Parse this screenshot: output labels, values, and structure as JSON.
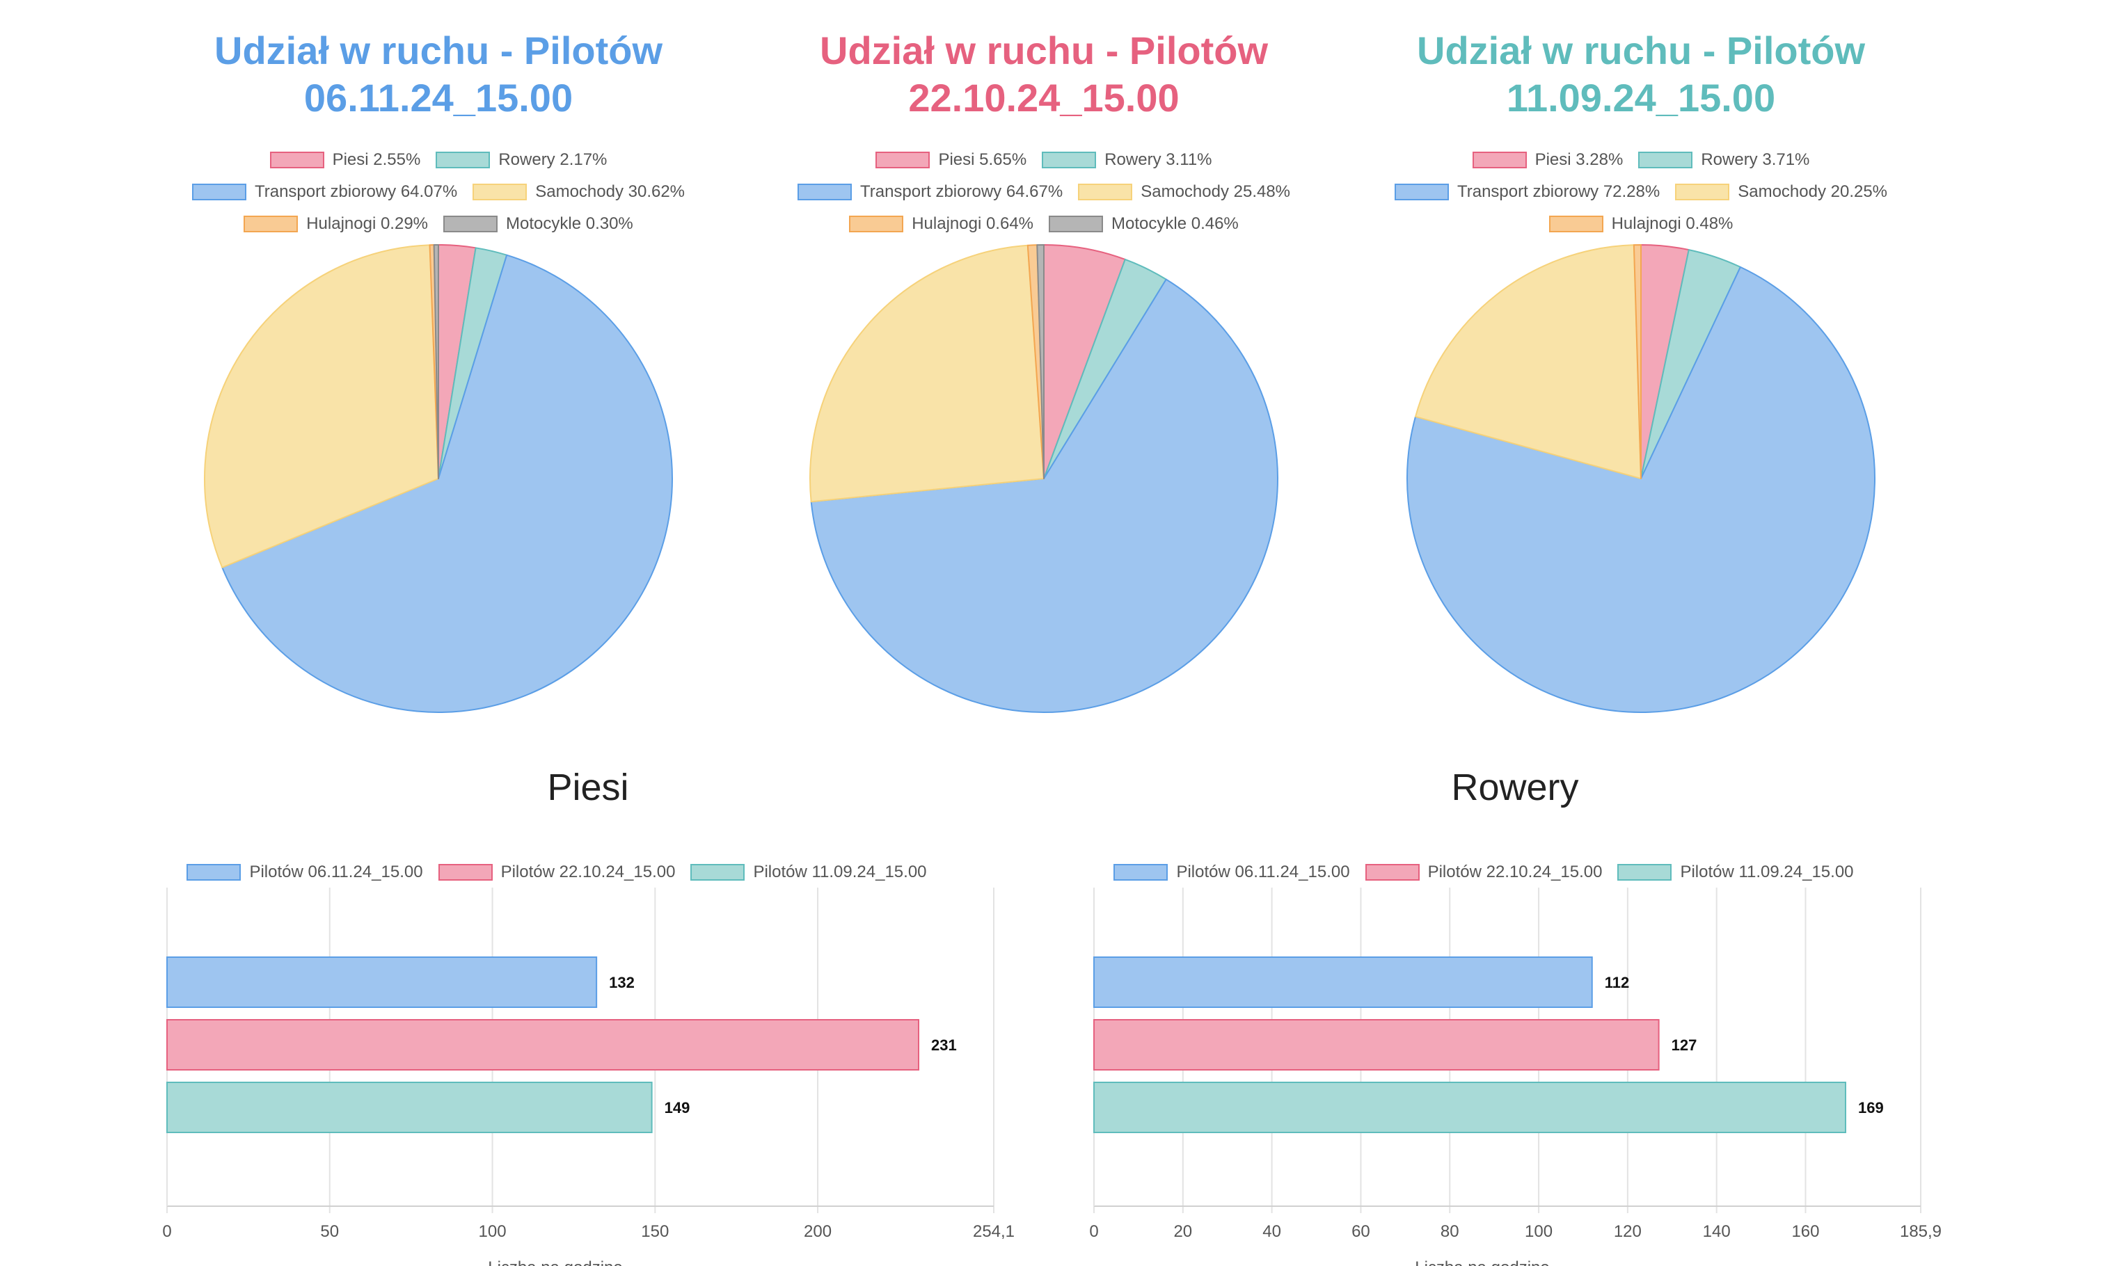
{
  "colors": {
    "blue": "#5b9ee6",
    "blue_fill": "#9ec5f0",
    "pink": "#e6617f",
    "pink_fill": "#f3a7b8",
    "teal": "#5fbcbc",
    "teal_fill": "#a8dad7",
    "yellow": "#f6d27a",
    "yellow_fill": "#f9e3a8",
    "orange": "#f3a651",
    "orange_fill": "#f9cb94",
    "gray": "#8a8a8a",
    "gray_fill": "#b5b5b5"
  },
  "chart_data": [
    {
      "type": "pie",
      "title": [
        "Udział w ruchu - Pilotów",
        "06.11.24_15.00"
      ],
      "title_color": "#5b9ee6",
      "labels": [
        "Piesi",
        "Rowery",
        "Transport zbiorowy",
        "Samochody",
        "Hulajnogi",
        "Motocykle"
      ],
      "values": [
        2.55,
        2.17,
        64.07,
        30.62,
        0.29,
        0.3
      ],
      "legend_text": [
        "Piesi 2.55%",
        "Rowery 2.17%",
        "Transport zbiorowy 64.07%",
        "Samochody 30.62%",
        "Hulajnogi 0.29%",
        "Motocykle 0.30%"
      ],
      "legend_rows": [
        [
          0,
          1
        ],
        [
          2,
          3
        ],
        [
          4,
          5
        ]
      ]
    },
    {
      "type": "pie",
      "title": [
        "Udział w ruchu - Pilotów",
        "22.10.24_15.00"
      ],
      "title_color": "#e6617f",
      "labels": [
        "Piesi",
        "Rowery",
        "Transport zbiorowy",
        "Samochody",
        "Hulajnogi",
        "Motocykle"
      ],
      "values": [
        5.65,
        3.11,
        64.67,
        25.48,
        0.64,
        0.46
      ],
      "legend_text": [
        "Piesi 5.65%",
        "Rowery 3.11%",
        "Transport zbiorowy 64.67%",
        "Samochody 25.48%",
        "Hulajnogi 0.64%",
        "Motocykle 0.46%"
      ],
      "legend_rows": [
        [
          0,
          1
        ],
        [
          2,
          3
        ],
        [
          4,
          5
        ]
      ]
    },
    {
      "type": "pie",
      "title": [
        "Udział w ruchu - Pilotów",
        "11.09.24_15.00"
      ],
      "title_color": "#5fbcbc",
      "labels": [
        "Piesi",
        "Rowery",
        "Transport zbiorowy",
        "Samochody",
        "Hulajnogi"
      ],
      "values": [
        3.28,
        3.71,
        72.28,
        20.25,
        0.48
      ],
      "legend_text": [
        "Piesi 3.28%",
        "Rowery 3.71%",
        "Transport zbiorowy 72.28%",
        "Samochody 20.25%",
        "Hulajnogi 0.48%"
      ],
      "legend_rows": [
        [
          0,
          1
        ],
        [
          2,
          3
        ],
        [
          4
        ]
      ]
    },
    {
      "type": "bar",
      "orientation": "horizontal",
      "title": "Piesi",
      "xlabel": "Liczba na godzinę",
      "series": [
        {
          "name": "Pilotów 06.11.24_15.00",
          "value": 132,
          "label": "132"
        },
        {
          "name": "Pilotów 22.10.24_15.00",
          "value": 231,
          "label": "231"
        },
        {
          "name": "Pilotów 11.09.24_15.00",
          "value": 149,
          "label": "149"
        }
      ],
      "xlim": [
        0,
        254.1
      ],
      "xticks": [
        0,
        50,
        100,
        150,
        200,
        254.1
      ],
      "xtick_labels": [
        "0",
        "50",
        "100",
        "150",
        "200",
        "254,1"
      ]
    },
    {
      "type": "bar",
      "orientation": "horizontal",
      "title": "Rowery",
      "xlabel": "Liczba na godzinę",
      "series": [
        {
          "name": "Pilotów 06.11.24_15.00",
          "value": 112,
          "label": "112"
        },
        {
          "name": "Pilotów 22.10.24_15.00",
          "value": 127,
          "label": "127"
        },
        {
          "name": "Pilotów 11.09.24_15.00",
          "value": 169,
          "label": "169"
        }
      ],
      "xlim": [
        0,
        185.9
      ],
      "xticks": [
        0,
        20,
        40,
        60,
        80,
        100,
        120,
        140,
        160,
        185.9
      ],
      "xtick_labels": [
        "0",
        "20",
        "40",
        "60",
        "80",
        "100",
        "120",
        "140",
        "160",
        "185,9"
      ]
    }
  ]
}
